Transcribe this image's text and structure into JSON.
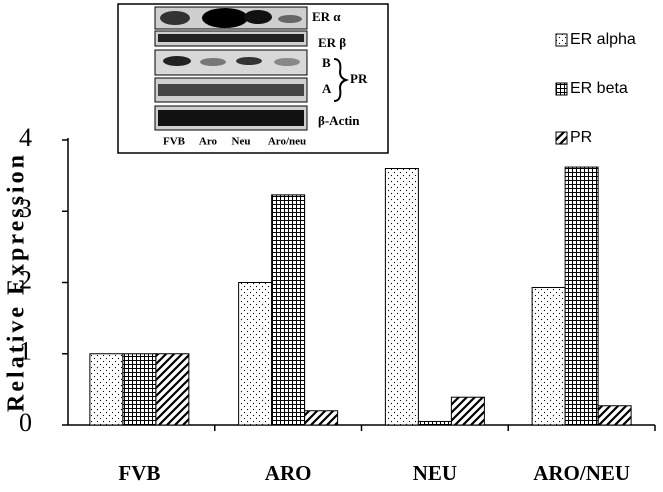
{
  "chart_data": {
    "type": "bar",
    "y_label": "Relative Expression",
    "categories": [
      "FVB",
      "ARO",
      "NEU",
      "ARO/NEU"
    ],
    "series": [
      {
        "name": "ER alpha",
        "color": "#000000",
        "pattern": "dots",
        "values": [
          1.0,
          2.0,
          3.6,
          1.93
        ]
      },
      {
        "name": "ER beta",
        "color": "#000000",
        "pattern": "grid",
        "values": [
          1.0,
          3.23,
          0.05,
          3.62
        ]
      },
      {
        "name": "PR",
        "color": "#000000",
        "pattern": "hatch",
        "values": [
          1.0,
          0.2,
          0.39,
          0.27
        ]
      }
    ],
    "ylim": [
      0,
      4
    ],
    "yticks": [
      0,
      1,
      2,
      3,
      4
    ],
    "grid": false,
    "legend": "right",
    "inset": {
      "band_labels": [
        "ER α",
        "ER β",
        "B",
        "A",
        "PR",
        "β-Actin"
      ],
      "lane_labels": [
        "FVB",
        "Aro",
        "Neu",
        "Aro/neu"
      ]
    }
  }
}
